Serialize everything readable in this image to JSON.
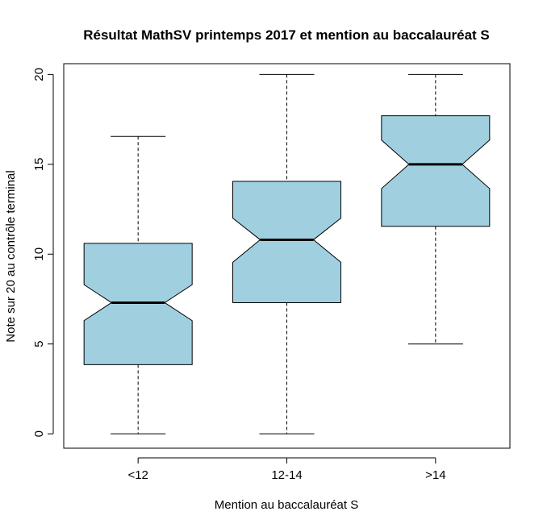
{
  "chart_data": {
    "type": "boxplot",
    "notched": true,
    "title": "Résultat MathSV printemps 2017 et mention au baccalauréat S",
    "xlabel": "Mention au baccalauréat S",
    "ylabel": "Note sur 20 au contrôle terminal",
    "ylim": [
      -0.8,
      20.6
    ],
    "yticks": [
      0,
      5,
      10,
      15,
      20
    ],
    "ytick_labels": [
      "0",
      "5",
      "10",
      "15",
      "20"
    ],
    "categories": [
      "<12",
      "12-14",
      ">14"
    ],
    "boxes": [
      {
        "label": "<12",
        "whisker_low": 0,
        "q1": 3.85,
        "median": 7.3,
        "q3": 10.6,
        "whisker_high": 16.55,
        "notch_low": 6.3,
        "notch_high": 8.3
      },
      {
        "label": "12-14",
        "whisker_low": 0,
        "q1": 7.3,
        "median": 10.8,
        "q3": 14.05,
        "whisker_high": 20,
        "notch_low": 9.55,
        "notch_high": 12.0
      },
      {
        "label": ">14",
        "whisker_low": 5,
        "q1": 11.55,
        "median": 15.0,
        "q3": 17.7,
        "whisker_high": 20,
        "notch_low": 13.65,
        "notch_high": 16.35
      }
    ],
    "box_color": "#a0d0e0",
    "border_color": "#000000"
  }
}
